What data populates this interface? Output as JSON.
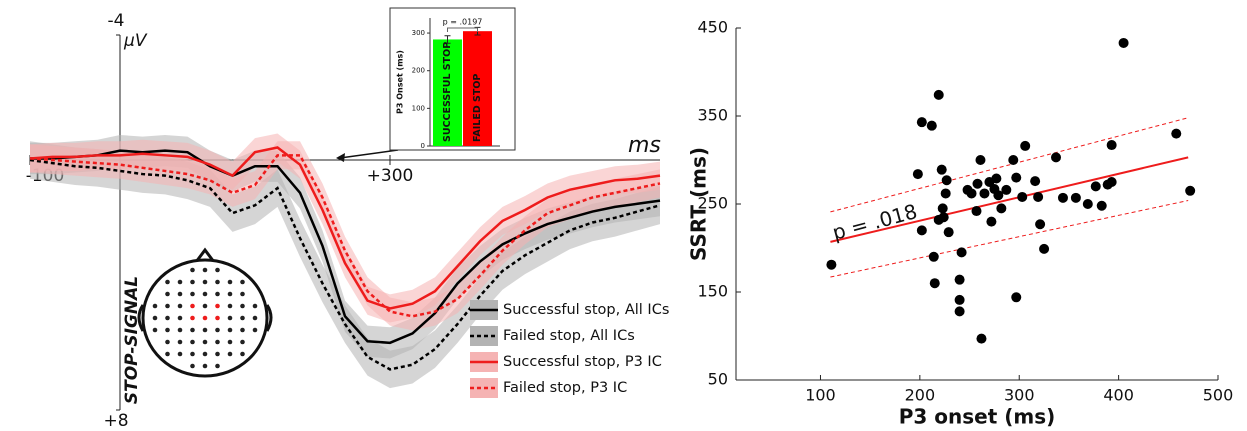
{
  "chart_data": [
    {
      "type": "line",
      "y_label": "µV",
      "x_label": "ms",
      "annotation": "STOP-SIGNAL",
      "x": [
        -100,
        -75,
        -50,
        -25,
        0,
        25,
        50,
        75,
        100,
        125,
        150,
        175,
        200,
        225,
        250,
        275,
        300,
        325,
        350,
        375,
        400,
        425,
        450,
        475,
        500,
        525,
        550,
        575,
        600
      ],
      "xlim": [
        -100,
        600
      ],
      "xticks": [
        -100,
        {
          "value": 300,
          "label": "+300"
        }
      ],
      "ylim": [
        -4,
        8
      ],
      "yticks": [
        -4,
        {
          "value": 8,
          "label": "+8"
        }
      ],
      "y_inverted": true,
      "legend": "lower right",
      "series": [
        {
          "name": "Successful stop, All ICs",
          "color": "#000000",
          "band_color": "#b3b3b3",
          "dash": "solid",
          "error": 0.5,
          "values": [
            -0.05,
            -0.05,
            -0.1,
            -0.15,
            -0.3,
            -0.25,
            -0.3,
            -0.25,
            0.2,
            0.5,
            0.2,
            0.2,
            1.05,
            2.75,
            5.0,
            5.8,
            5.85,
            5.55,
            4.9,
            3.95,
            3.25,
            2.7,
            2.35,
            2.05,
            1.85,
            1.65,
            1.5,
            1.4,
            1.3
          ]
        },
        {
          "name": "Failed stop, All ICs",
          "color": "#000000",
          "band_color": "#b3b3b3",
          "dash": "dotted",
          "error": 0.6,
          "values": [
            0,
            0.1,
            0.2,
            0.25,
            0.35,
            0.45,
            0.5,
            0.65,
            0.9,
            1.7,
            1.45,
            0.9,
            2.5,
            3.95,
            5.25,
            6.3,
            6.7,
            6.55,
            6.05,
            5.25,
            4.35,
            3.55,
            3.05,
            2.65,
            2.25,
            2.0,
            1.85,
            1.65,
            1.45
          ]
        },
        {
          "name": "Successful stop, P3 IC",
          "color": "#ee1c1c",
          "band_color": "#f5b3b3",
          "dash": "solid",
          "error": 0.45,
          "values": [
            -0.05,
            -0.1,
            -0.1,
            -0.15,
            -0.15,
            -0.2,
            -0.15,
            -0.1,
            0.15,
            0.5,
            -0.25,
            -0.4,
            0.15,
            1.6,
            3.3,
            4.5,
            4.75,
            4.6,
            4.2,
            3.4,
            2.6,
            1.95,
            1.6,
            1.2,
            0.95,
            0.8,
            0.65,
            0.6,
            0.5
          ]
        },
        {
          "name": "Failed stop, P3 IC",
          "color": "#ee1c1c",
          "band_color": "#f5b3b3",
          "dash": "dotted",
          "error": 0.45,
          "values": [
            -0.05,
            0,
            0.05,
            0.1,
            0.15,
            0.25,
            0.35,
            0.45,
            0.65,
            1.05,
            0.8,
            -0.15,
            -0.15,
            1.2,
            2.9,
            4.2,
            4.85,
            5.0,
            4.85,
            4.45,
            3.7,
            2.9,
            2.25,
            1.7,
            1.45,
            1.2,
            1.05,
            0.9,
            0.75
          ]
        }
      ]
    },
    {
      "type": "bar",
      "y_label": "P3 Onset (ms)",
      "categories": [
        "SUCCESSFUL STOP",
        "FAILED STOP"
      ],
      "values": [
        283,
        305
      ],
      "errors": [
        10,
        10
      ],
      "colors": [
        "#00ff00",
        "#ff0000"
      ],
      "ylim": [
        0,
        340
      ],
      "yticks": [
        0,
        100,
        200,
        300
      ],
      "annotation": "p = .0197"
    },
    {
      "type": "scatter",
      "x_label": "P3 onset (ms)",
      "y_label": "SSRT (ms)",
      "annotation": "p = .018",
      "color": "#000000",
      "x": [
        111,
        198,
        202,
        212,
        219,
        222,
        227,
        226,
        223,
        224,
        219,
        229,
        202,
        214,
        215,
        242,
        240,
        240,
        240,
        262,
        261,
        248,
        252,
        258,
        257,
        265,
        270,
        277,
        275,
        272,
        279,
        282,
        287,
        294,
        297,
        303,
        306,
        297,
        316,
        319,
        321,
        325,
        337,
        344,
        357,
        369,
        377,
        383,
        389,
        393,
        393,
        405,
        458,
        472
      ],
      "y": [
        181,
        284,
        343,
        339,
        374,
        289,
        277,
        262,
        245,
        235,
        232,
        218,
        220,
        190,
        160,
        195,
        164,
        141,
        128,
        97,
        300,
        266,
        262,
        273,
        242,
        262,
        275,
        279,
        267,
        230,
        260,
        245,
        266,
        300,
        280,
        258,
        316,
        144,
        276,
        258,
        227,
        199,
        303,
        257,
        257,
        250,
        270,
        248,
        272,
        275,
        317,
        433,
        330,
        265
      ],
      "xlim": [
        15,
        500
      ],
      "xticks": [
        100,
        200,
        300,
        400,
        500
      ],
      "ylim": [
        50,
        450
      ],
      "yticks": [
        50,
        150,
        250,
        350,
        450
      ],
      "fit": {
        "color": "#ee1c1c",
        "x": [
          110,
          470
        ],
        "y": [
          207,
          303
        ],
        "ci_lower": [
          167,
          254
        ],
        "ci_upper": [
          241,
          348
        ]
      }
    }
  ]
}
